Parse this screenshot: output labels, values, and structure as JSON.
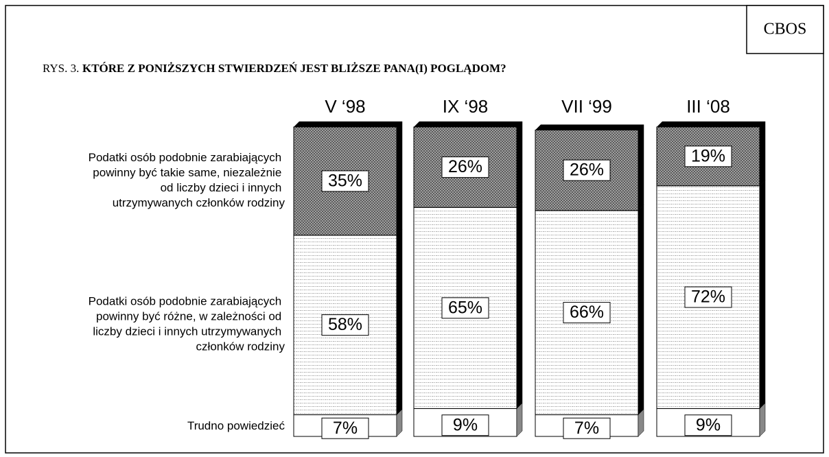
{
  "chart_data": {
    "type": "stacked-bar",
    "source": "CBOS",
    "figure_label": "RYS. 3.",
    "title": "KTÓRE Z PONIŻSZYCH STWIERDZEŃ JEST BLIŻSZE PANA(I) POGLĄDOM?",
    "categories": [
      "V ‘98",
      "IX ‘98",
      "VII ‘99",
      "III ‘08"
    ],
    "ylim": [
      0,
      100
    ],
    "series": [
      {
        "name": "Podatki osób podobnie zarabiających powinny być takie same, niezależnie od liczby dzieci i innych utrzymywanych członków rodziny",
        "color": "#6a6a6a",
        "values": [
          35,
          26,
          26,
          19
        ],
        "value_labels": [
          "35%",
          "26%",
          "26%",
          "19%"
        ]
      },
      {
        "name": "Podatki osób podobnie zarabiających powinny być różne, w zależności od liczby dzieci i innych utrzymywanych członków rodziny",
        "color": "#e4e4e4",
        "values": [
          58,
          65,
          66,
          72
        ],
        "value_labels": [
          "58%",
          "65%",
          "66%",
          "72%"
        ]
      },
      {
        "name": "Trudno powiedzieć",
        "color": "#ffffff",
        "values": [
          7,
          9,
          7,
          9
        ],
        "value_labels": [
          "7%",
          "9%",
          "7%",
          "9%"
        ]
      }
    ]
  }
}
